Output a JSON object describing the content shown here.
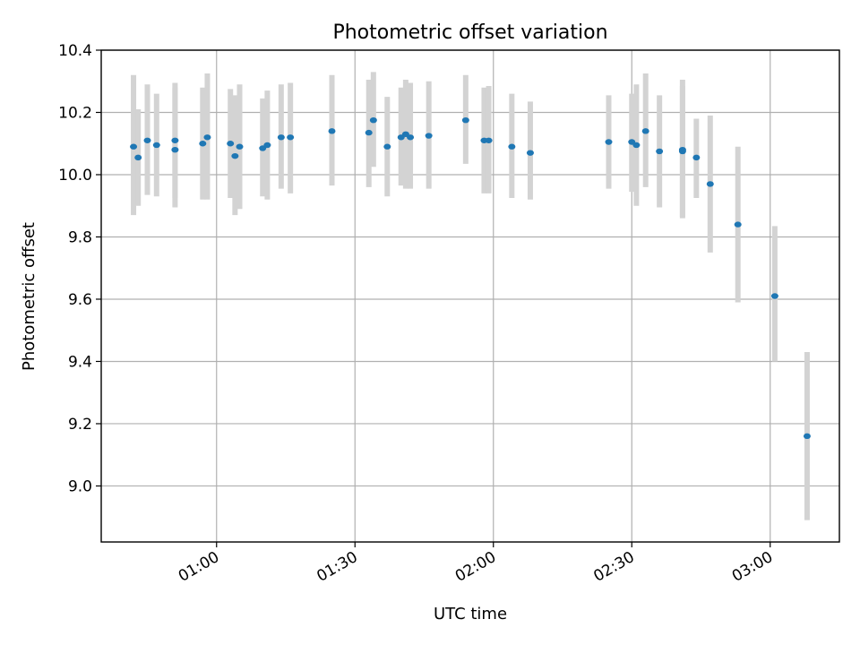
{
  "chart_data": {
    "type": "scatter",
    "title": "Photometric offset variation",
    "xlabel": "UTC time",
    "ylabel": "Photometric offset",
    "x_unit": "minutes",
    "xlim": [
      "00:35",
      "03:15"
    ],
    "ylim": [
      8.82,
      10.4
    ],
    "x_ticks": [
      "01:00",
      "01:30",
      "02:00",
      "02:30",
      "03:00"
    ],
    "y_ticks": [
      "9.0",
      "9.2",
      "9.4",
      "9.6",
      "9.8",
      "10.0",
      "10.2",
      "10.4"
    ],
    "grid": true,
    "colors": {
      "point": "#1f77b4",
      "errorbar": "#d3d3d3",
      "grid": "#b0b0b0"
    },
    "series": [
      {
        "x": [
          "00:42",
          "00:43",
          "00:45",
          "00:47",
          "00:51",
          "00:51",
          "00:57",
          "00:58",
          "01:03",
          "01:04",
          "01:05",
          "01:10",
          "01:11",
          "01:14",
          "01:16",
          "01:25",
          "01:33",
          "01:34",
          "01:37",
          "01:40",
          "01:41",
          "01:42",
          "01:46",
          "01:54",
          "01:58",
          "01:59",
          "02:04",
          "02:08",
          "02:25",
          "02:30",
          "02:31",
          "02:33",
          "02:36",
          "02:41",
          "02:41",
          "02:44",
          "02:47",
          "02:53",
          "03:01",
          "03:08"
        ],
        "y": [
          10.09,
          10.055,
          10.11,
          10.095,
          10.11,
          10.08,
          10.1,
          10.12,
          10.1,
          10.06,
          10.09,
          10.085,
          10.095,
          10.12,
          10.12,
          10.14,
          10.135,
          10.175,
          10.09,
          10.12,
          10.13,
          10.12,
          10.125,
          10.175,
          10.11,
          10.11,
          10.09,
          10.07,
          10.105,
          10.105,
          10.095,
          10.14,
          10.075,
          10.08,
          10.075,
          10.055,
          9.97,
          9.84,
          9.61,
          9.16
        ],
        "err_low": [
          9.87,
          9.9,
          9.935,
          9.93,
          9.895,
          9.925,
          9.92,
          9.92,
          9.925,
          9.87,
          9.89,
          9.93,
          9.92,
          9.955,
          9.94,
          9.965,
          9.96,
          10.025,
          9.93,
          9.965,
          9.955,
          9.955,
          9.955,
          10.035,
          9.94,
          9.94,
          9.925,
          9.92,
          9.955,
          9.945,
          9.9,
          9.96,
          9.895,
          9.86,
          9.865,
          9.925,
          9.75,
          9.59,
          9.4,
          8.89
        ],
        "err_high": [
          10.32,
          10.21,
          10.29,
          10.26,
          10.295,
          10.28,
          10.28,
          10.325,
          10.275,
          10.255,
          10.29,
          10.245,
          10.27,
          10.29,
          10.295,
          10.32,
          10.305,
          10.33,
          10.25,
          10.28,
          10.305,
          10.295,
          10.3,
          10.32,
          10.28,
          10.285,
          10.26,
          10.235,
          10.255,
          10.26,
          10.29,
          10.325,
          10.255,
          10.305,
          10.285,
          10.18,
          10.19,
          10.09,
          9.835,
          9.43
        ]
      }
    ]
  }
}
